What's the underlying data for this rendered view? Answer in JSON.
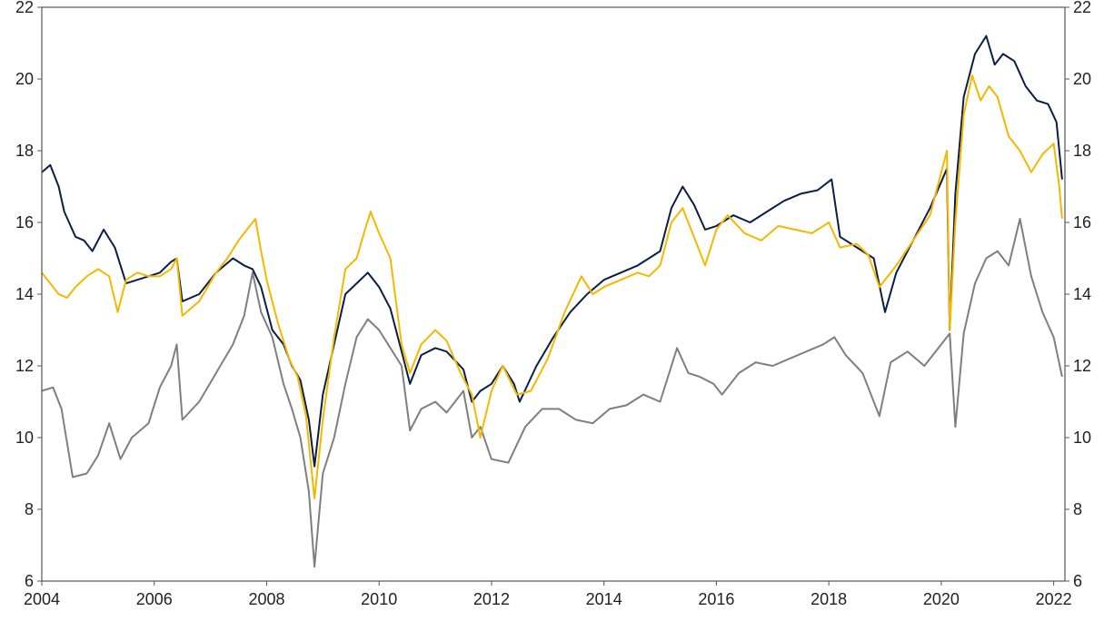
{
  "chart_data": {
    "type": "line",
    "title": "",
    "xlabel": "",
    "ylabel": "",
    "xlim": [
      2004,
      2022.2
    ],
    "ylim": [
      6,
      22
    ],
    "grid": false,
    "legend": "none",
    "x_ticks": [
      "2004",
      "2006",
      "2008",
      "2010",
      "2012",
      "2014",
      "2016",
      "2018",
      "2020",
      "2022"
    ],
    "y_ticks_left": [
      "6",
      "8",
      "10",
      "12",
      "14",
      "16",
      "18",
      "20",
      "22"
    ],
    "y_ticks_right": [
      "6",
      "8",
      "10",
      "12",
      "14",
      "16",
      "18",
      "20",
      "22"
    ],
    "series": [
      {
        "color": "#7f7f7f",
        "x": [
          2004.0,
          2004.2,
          2004.35,
          2004.55,
          2004.8,
          2005.0,
          2005.2,
          2005.4,
          2005.6,
          2005.9,
          2006.1,
          2006.3,
          2006.4,
          2006.5,
          2006.8,
          2007.1,
          2007.4,
          2007.6,
          2007.75,
          2007.9,
          2008.1,
          2008.3,
          2008.45,
          2008.6,
          2008.75,
          2008.85,
          2009.0,
          2009.2,
          2009.4,
          2009.6,
          2009.8,
          2010.0,
          2010.2,
          2010.4,
          2010.55,
          2010.75,
          2011.0,
          2011.2,
          2011.5,
          2011.65,
          2011.8,
          2012.0,
          2012.3,
          2012.6,
          2012.9,
          2013.2,
          2013.5,
          2013.8,
          2014.1,
          2014.4,
          2014.7,
          2015.0,
          2015.3,
          2015.5,
          2015.7,
          2015.95,
          2016.1,
          2016.4,
          2016.7,
          2017.0,
          2017.3,
          2017.6,
          2017.9,
          2018.1,
          2018.3,
          2018.6,
          2018.9,
          2019.1,
          2019.4,
          2019.7,
          2020.0,
          2020.15,
          2020.25,
          2020.4,
          2020.6,
          2020.8,
          2021.0,
          2021.2,
          2021.4,
          2021.6,
          2021.8,
          2022.0,
          2022.15
        ],
        "values": [
          11.3,
          11.4,
          10.8,
          8.9,
          9.0,
          9.5,
          10.4,
          9.4,
          10.0,
          10.4,
          11.4,
          12.0,
          12.6,
          10.5,
          11.0,
          11.8,
          12.6,
          13.4,
          14.6,
          13.5,
          12.8,
          11.5,
          10.8,
          10.0,
          8.5,
          6.4,
          9.0,
          10.0,
          11.5,
          12.8,
          13.3,
          13.0,
          12.5,
          12.0,
          10.2,
          10.8,
          11.0,
          10.7,
          11.3,
          10.0,
          10.3,
          9.4,
          9.3,
          10.3,
          10.8,
          10.8,
          10.5,
          10.4,
          10.8,
          10.9,
          11.2,
          11.0,
          12.5,
          11.8,
          11.7,
          11.5,
          11.2,
          11.8,
          12.1,
          12.0,
          12.2,
          12.4,
          12.6,
          12.8,
          12.3,
          11.8,
          10.6,
          12.1,
          12.4,
          12.0,
          12.6,
          12.9,
          10.3,
          12.9,
          14.3,
          15.0,
          15.2,
          14.8,
          16.1,
          14.5,
          13.5,
          12.8,
          11.7
        ]
      },
      {
        "color": "#0b1f44",
        "x": [
          2004.0,
          2004.15,
          2004.3,
          2004.4,
          2004.6,
          2004.75,
          2004.9,
          2005.1,
          2005.3,
          2005.5,
          2005.7,
          2005.9,
          2006.1,
          2006.3,
          2006.4,
          2006.5,
          2006.8,
          2007.1,
          2007.4,
          2007.6,
          2007.75,
          2007.9,
          2008.1,
          2008.3,
          2008.45,
          2008.6,
          2008.75,
          2008.85,
          2009.0,
          2009.2,
          2009.4,
          2009.6,
          2009.8,
          2010.0,
          2010.2,
          2010.4,
          2010.55,
          2010.75,
          2011.0,
          2011.2,
          2011.5,
          2011.65,
          2011.8,
          2012.0,
          2012.2,
          2012.4,
          2012.5,
          2012.8,
          2013.1,
          2013.4,
          2013.7,
          2014.0,
          2014.3,
          2014.6,
          2014.8,
          2015.0,
          2015.2,
          2015.4,
          2015.6,
          2015.8,
          2016.0,
          2016.3,
          2016.6,
          2016.9,
          2017.2,
          2017.5,
          2017.8,
          2018.05,
          2018.2,
          2018.5,
          2018.8,
          2019.0,
          2019.2,
          2019.5,
          2019.8,
          2020.1,
          2020.15,
          2020.25,
          2020.4,
          2020.6,
          2020.8,
          2020.95,
          2021.1,
          2021.3,
          2021.5,
          2021.7,
          2021.9,
          2022.05,
          2022.15
        ],
        "values": [
          17.4,
          17.6,
          17.0,
          16.3,
          15.6,
          15.5,
          15.2,
          15.8,
          15.3,
          14.3,
          14.4,
          14.5,
          14.6,
          14.9,
          15.0,
          13.8,
          14.0,
          14.6,
          15.0,
          14.8,
          14.7,
          14.2,
          13.0,
          12.6,
          12.0,
          11.6,
          10.5,
          9.2,
          11.2,
          12.6,
          14.0,
          14.3,
          14.6,
          14.2,
          13.6,
          12.4,
          11.5,
          12.3,
          12.5,
          12.4,
          11.9,
          11.0,
          11.3,
          11.5,
          12.0,
          11.5,
          11.0,
          12.0,
          12.8,
          13.5,
          14.0,
          14.4,
          14.6,
          14.8,
          15.0,
          15.2,
          16.4,
          17.0,
          16.5,
          15.8,
          15.9,
          16.2,
          16.0,
          16.3,
          16.6,
          16.8,
          16.9,
          17.2,
          15.6,
          15.3,
          15.0,
          13.5,
          14.6,
          15.5,
          16.4,
          17.5,
          13.0,
          16.8,
          19.5,
          20.7,
          21.2,
          20.4,
          20.7,
          20.5,
          19.8,
          19.4,
          19.3,
          18.8,
          17.2
        ]
      },
      {
        "color": "#f5b800",
        "x": [
          2004.0,
          2004.15,
          2004.3,
          2004.45,
          2004.6,
          2004.8,
          2005.0,
          2005.2,
          2005.35,
          2005.5,
          2005.7,
          2005.9,
          2006.1,
          2006.3,
          2006.4,
          2006.5,
          2006.8,
          2007.1,
          2007.3,
          2007.5,
          2007.65,
          2007.8,
          2007.9,
          2008.0,
          2008.2,
          2008.4,
          2008.55,
          2008.7,
          2008.85,
          2009.0,
          2009.2,
          2009.4,
          2009.6,
          2009.75,
          2009.85,
          2010.0,
          2010.2,
          2010.4,
          2010.55,
          2010.75,
          2011.0,
          2011.2,
          2011.45,
          2011.65,
          2011.8,
          2012.0,
          2012.2,
          2012.45,
          2012.7,
          2013.0,
          2013.3,
          2013.6,
          2013.8,
          2014.0,
          2014.3,
          2014.6,
          2014.8,
          2015.0,
          2015.2,
          2015.4,
          2015.6,
          2015.8,
          2016.0,
          2016.2,
          2016.5,
          2016.8,
          2017.1,
          2017.4,
          2017.7,
          2018.0,
          2018.2,
          2018.5,
          2018.7,
          2018.9,
          2019.0,
          2019.2,
          2019.5,
          2019.8,
          2020.1,
          2020.15,
          2020.25,
          2020.4,
          2020.55,
          2020.7,
          2020.85,
          2021.0,
          2021.2,
          2021.4,
          2021.6,
          2021.8,
          2022.0,
          2022.1,
          2022.15
        ],
        "values": [
          14.6,
          14.3,
          14.0,
          13.9,
          14.2,
          14.5,
          14.7,
          14.5,
          13.5,
          14.4,
          14.6,
          14.5,
          14.5,
          14.7,
          15.0,
          13.4,
          13.8,
          14.6,
          15.0,
          15.5,
          15.8,
          16.1,
          15.2,
          14.4,
          13.2,
          12.2,
          11.7,
          10.6,
          8.3,
          10.5,
          12.8,
          14.7,
          15.0,
          15.8,
          16.3,
          15.7,
          15.0,
          12.6,
          11.8,
          12.6,
          13.0,
          12.7,
          11.8,
          11.2,
          10.0,
          11.3,
          12.0,
          11.2,
          11.3,
          12.2,
          13.5,
          14.5,
          14.0,
          14.2,
          14.4,
          14.6,
          14.5,
          14.8,
          16.0,
          16.4,
          15.6,
          14.8,
          15.8,
          16.2,
          15.7,
          15.5,
          15.9,
          15.8,
          15.7,
          16.0,
          15.3,
          15.4,
          15.1,
          14.2,
          14.4,
          14.8,
          15.5,
          16.2,
          18.0,
          13.0,
          16.0,
          19.0,
          20.1,
          19.4,
          19.8,
          19.5,
          18.4,
          18.0,
          17.4,
          17.9,
          18.2,
          17.0,
          16.1
        ]
      }
    ]
  }
}
